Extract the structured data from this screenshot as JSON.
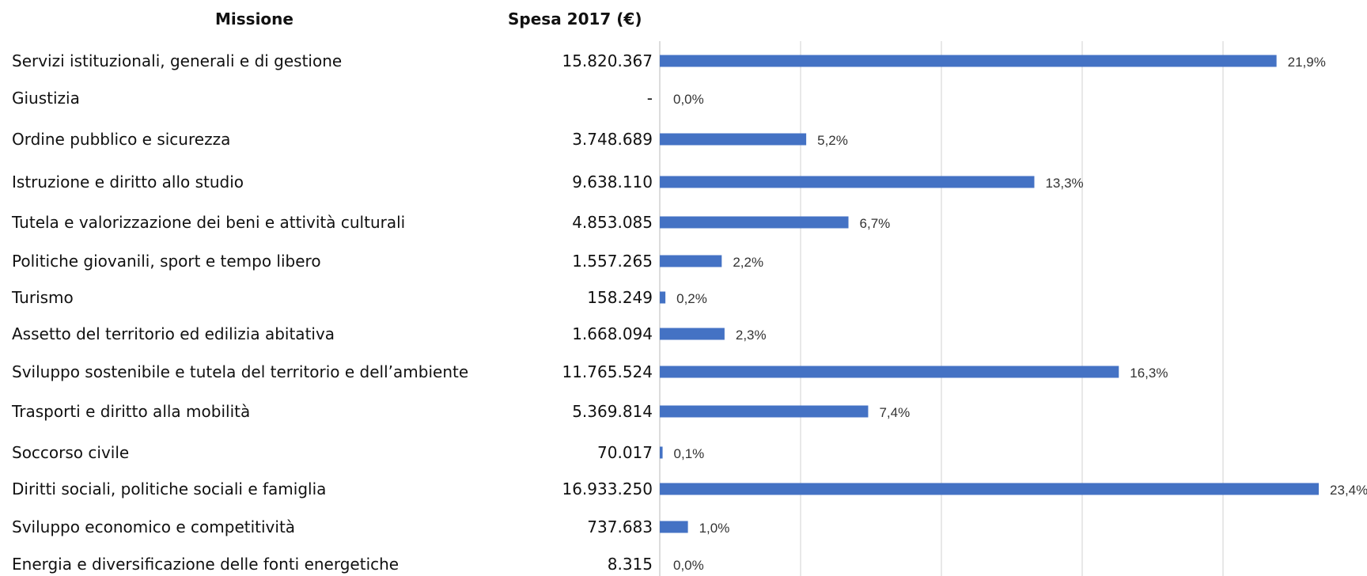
{
  "headers": {
    "missione": "Missione",
    "spesa": "Spesa 2017 (€)"
  },
  "chart_data": {
    "type": "bar",
    "orientation": "horizontal",
    "categories": [
      "Servizi istituzionali, generali e di gestione",
      "Giustizia",
      "Ordine pubblico e sicurezza",
      "Istruzione e diritto allo studio",
      "Tutela e valorizzazione dei beni e attività culturali",
      "Politiche giovanili, sport e tempo libero",
      "Turismo",
      "Assetto del territorio ed edilizia abitativa",
      "Sviluppo sostenibile e tutela del territorio e dell’ambiente",
      "Trasporti e diritto alla mobilità",
      "Soccorso civile",
      "Diritti sociali, politiche sociali e famiglia",
      "Sviluppo economico e competitività",
      "Energia e diversificazione delle fonti energetiche"
    ],
    "amounts": [
      "15.820.367",
      "-",
      "3.748.689",
      "9.638.110",
      "4.853.085",
      "1.557.265",
      "158.249",
      "1.668.094",
      "11.765.524",
      "5.369.814",
      "70.017",
      "16.933.250",
      "737.683",
      "8.315"
    ],
    "values": [
      21.9,
      0.0,
      5.2,
      13.3,
      6.7,
      2.2,
      0.2,
      2.3,
      16.3,
      7.4,
      0.1,
      23.4,
      1.0,
      0.0
    ],
    "value_labels": [
      "21,9%",
      "0,0%",
      "5,2%",
      "13,3%",
      "6,7%",
      "2,2%",
      "0,2%",
      "2,3%",
      "16,3%",
      "7,4%",
      "0,1%",
      "23,4%",
      "1,0%",
      "0,0%"
    ],
    "xlim": [
      0,
      25
    ],
    "grid": "vertical",
    "bar_color": "#4472C4"
  }
}
